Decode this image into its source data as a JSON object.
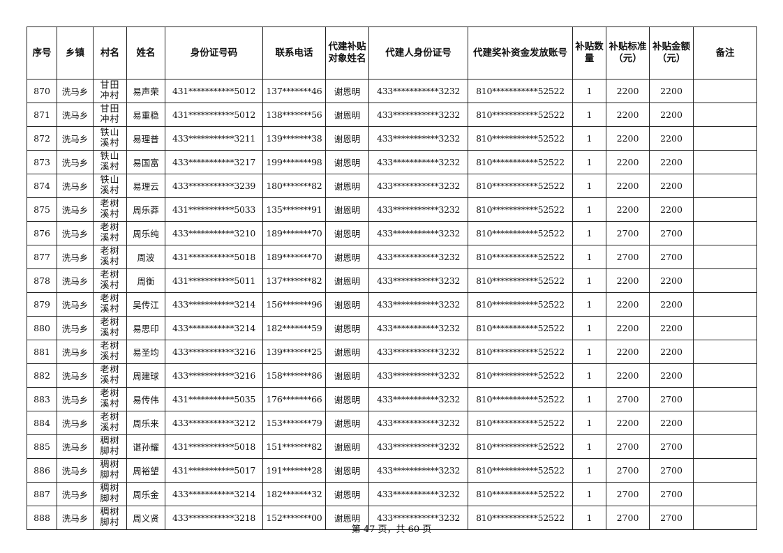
{
  "headers": [
    "序号",
    "乡镇",
    "村名",
    "姓名",
    "身份证号码",
    "联系电话",
    "代建补贴对象姓名",
    "代建人身份证号",
    "代建奖补资金发放账号",
    "补贴数量",
    "补贴标准（元）",
    "补贴金额（元）",
    "备注"
  ],
  "rows": [
    [
      "870",
      "洗马乡",
      "甘田冲村",
      "易声荣",
      "431***********5012",
      "137*******46",
      "谢恩明",
      "433***********3232",
      "810***********52522",
      "1",
      "2200",
      "2200",
      ""
    ],
    [
      "871",
      "洗马乡",
      "甘田冲村",
      "易重稳",
      "431***********5012",
      "138*******56",
      "谢恩明",
      "433***********3232",
      "810***********52522",
      "1",
      "2200",
      "2200",
      ""
    ],
    [
      "872",
      "洗马乡",
      "铁山溪村",
      "易理普",
      "433***********3211",
      "139*******38",
      "谢恩明",
      "433***********3232",
      "810***********52522",
      "1",
      "2200",
      "2200",
      ""
    ],
    [
      "873",
      "洗马乡",
      "铁山溪村",
      "易国富",
      "433***********3217",
      "199*******98",
      "谢恩明",
      "433***********3232",
      "810***********52522",
      "1",
      "2200",
      "2200",
      ""
    ],
    [
      "874",
      "洗马乡",
      "铁山溪村",
      "易理云",
      "433***********3239",
      "180*******82",
      "谢恩明",
      "433***********3232",
      "810***********52522",
      "1",
      "2200",
      "2200",
      ""
    ],
    [
      "875",
      "洗马乡",
      "老树溪村",
      "周乐莽",
      "431***********5033",
      "135*******91",
      "谢恩明",
      "433***********3232",
      "810***********52522",
      "1",
      "2200",
      "2200",
      ""
    ],
    [
      "876",
      "洗马乡",
      "老树溪村",
      "周乐纯",
      "433***********3210",
      "189*******70",
      "谢恩明",
      "433***********3232",
      "810***********52522",
      "1",
      "2700",
      "2700",
      ""
    ],
    [
      "877",
      "洗马乡",
      "老树溪村",
      "周波",
      "431***********5018",
      "189*******70",
      "谢恩明",
      "433***********3232",
      "810***********52522",
      "1",
      "2700",
      "2700",
      ""
    ],
    [
      "878",
      "洗马乡",
      "老树溪村",
      "周衡",
      "431***********5011",
      "137*******82",
      "谢恩明",
      "433***********3232",
      "810***********52522",
      "1",
      "2200",
      "2200",
      ""
    ],
    [
      "879",
      "洗马乡",
      "老树溪村",
      "吴传江",
      "433***********3214",
      "156*******96",
      "谢恩明",
      "433***********3232",
      "810***********52522",
      "1",
      "2200",
      "2200",
      ""
    ],
    [
      "880",
      "洗马乡",
      "老树溪村",
      "易思印",
      "433***********3214",
      "182*******59",
      "谢恩明",
      "433***********3232",
      "810***********52522",
      "1",
      "2200",
      "2200",
      ""
    ],
    [
      "881",
      "洗马乡",
      "老树溪村",
      "易圣均",
      "433***********3216",
      "139*******25",
      "谢恩明",
      "433***********3232",
      "810***********52522",
      "1",
      "2200",
      "2200",
      ""
    ],
    [
      "882",
      "洗马乡",
      "老树溪村",
      "周建球",
      "433***********3216",
      "158*******86",
      "谢恩明",
      "433***********3232",
      "810***********52522",
      "1",
      "2200",
      "2200",
      ""
    ],
    [
      "883",
      "洗马乡",
      "老树溪村",
      "易传伟",
      "431***********5035",
      "176*******66",
      "谢恩明",
      "433***********3232",
      "810***********52522",
      "1",
      "2700",
      "2700",
      ""
    ],
    [
      "884",
      "洗马乡",
      "老树溪村",
      "周乐来",
      "433***********3212",
      "153*******79",
      "谢恩明",
      "433***********3232",
      "810***********52522",
      "1",
      "2200",
      "2200",
      ""
    ],
    [
      "885",
      "洗马乡",
      "稠树脚村",
      "谌孙耀",
      "431***********5018",
      "151*******82",
      "谢恩明",
      "433***********3232",
      "810***********52522",
      "1",
      "2700",
      "2700",
      ""
    ],
    [
      "886",
      "洗马乡",
      "稠树脚村",
      "周裕望",
      "431***********5017",
      "191*******28",
      "谢恩明",
      "433***********3232",
      "810***********52522",
      "1",
      "2700",
      "2700",
      ""
    ],
    [
      "887",
      "洗马乡",
      "稠树脚村",
      "周乐金",
      "433***********3214",
      "182*******32",
      "谢恩明",
      "433***********3232",
      "810***********52522",
      "1",
      "2700",
      "2700",
      ""
    ],
    [
      "888",
      "洗马乡",
      "稠树脚村",
      "周义贤",
      "433***********3218",
      "152*******00",
      "谢恩明",
      "433***********3232",
      "810***********52522",
      "1",
      "2700",
      "2700",
      ""
    ]
  ],
  "footer": "第 47 页，共 60 页"
}
